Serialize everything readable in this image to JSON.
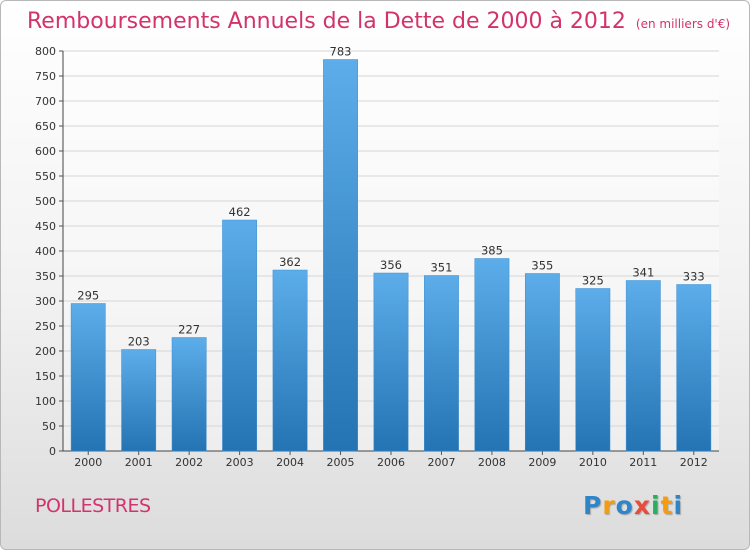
{
  "header": {
    "title": "Remboursements Annuels de la Dette de 2000 à 2012",
    "subtitle": "(en milliers d'€)"
  },
  "footer": {
    "commune": "POLLESTRES",
    "logo_text": "Proxiti",
    "logo_letters": [
      {
        "ch": "P",
        "color": "#2e86c8"
      },
      {
        "ch": "r",
        "color": "#f39c12"
      },
      {
        "ch": "o",
        "color": "#2e86c8"
      },
      {
        "ch": "x",
        "color": "#e74c3c"
      },
      {
        "ch": "i",
        "color": "#27ae60"
      },
      {
        "ch": "t",
        "color": "#f39c12"
      },
      {
        "ch": "i",
        "color": "#2e86c8"
      }
    ]
  },
  "colors": {
    "accent": "#d2336b",
    "bar_top": "#5cadea",
    "bar_bottom": "#2473b3"
  },
  "chart_data": {
    "type": "bar",
    "categories": [
      "2000",
      "2001",
      "2002",
      "2003",
      "2004",
      "2005",
      "2006",
      "2007",
      "2008",
      "2009",
      "2010",
      "2011",
      "2012"
    ],
    "values": [
      295,
      203,
      227,
      462,
      362,
      783,
      356,
      351,
      385,
      355,
      325,
      341,
      333
    ],
    "title": "Remboursements Annuels de la Dette de 2000 à 2012",
    "subtitle": "(en milliers d'€)",
    "ylim": [
      0,
      800
    ],
    "yticks": [
      0,
      50,
      100,
      150,
      200,
      250,
      300,
      350,
      400,
      450,
      500,
      550,
      600,
      650,
      700,
      750,
      800
    ],
    "grid": true,
    "data_labels": true
  }
}
